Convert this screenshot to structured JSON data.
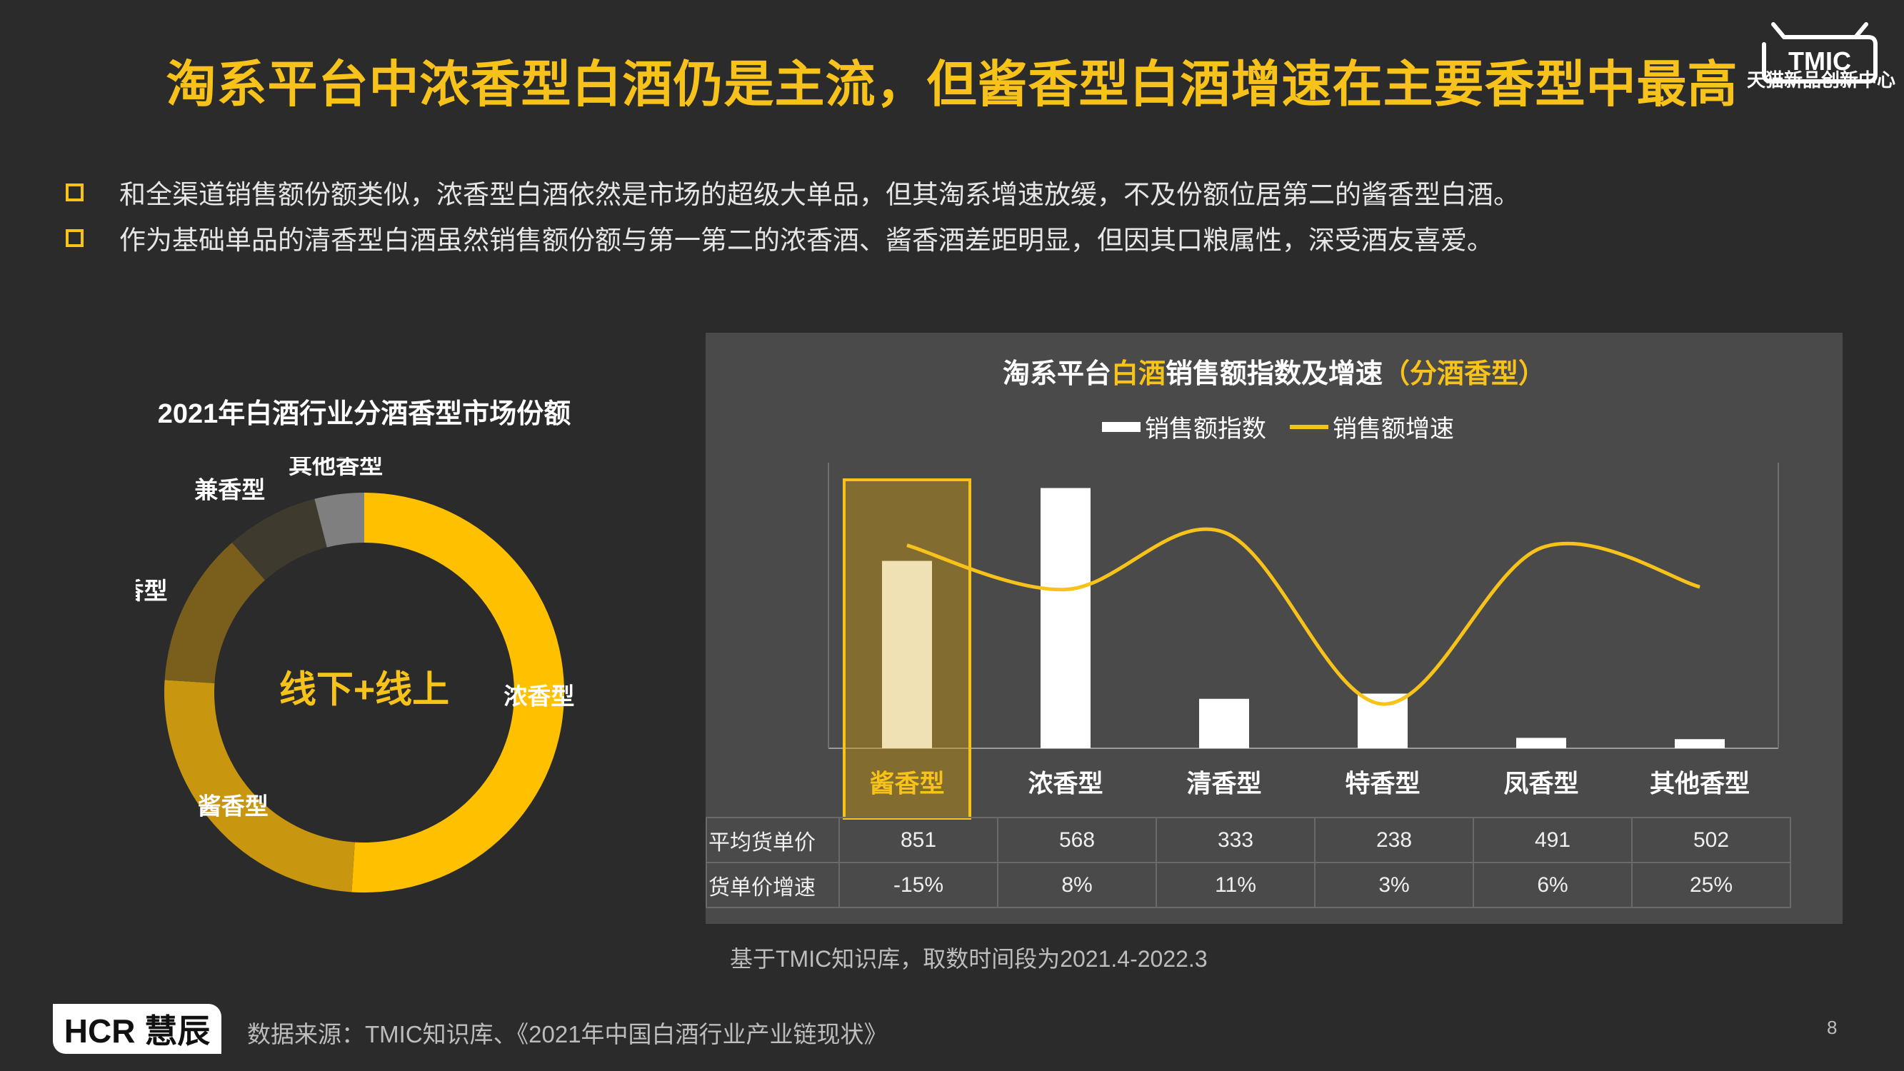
{
  "header": {
    "title": "淘系平台中浓香型白酒仍是主流，但酱香型白酒增速在主要香型中最高"
  },
  "brand": {
    "tmic_logo_text": "TMIC",
    "tmic_subtitle": "天猫新品创新中心",
    "hcr_logo": "HCR 慧辰"
  },
  "bullets": [
    "和全渠道销售额份额类似，浓香型白酒依然是市场的超级大单品，但其淘系增速放缓，不及份额位居第二的酱香型白酒。",
    "作为基础单品的清香型白酒虽然销售额份额与第一第二的浓香酒、酱香酒差距明显，但因其口粮属性，深受酒友喜爱。"
  ],
  "chart_data": [
    {
      "type": "pie",
      "variant": "donut",
      "title": "2021年白酒行业分酒香型市场份额",
      "center_label": "线下+线上",
      "slices": [
        {
          "label": "浓香型",
          "value": 51.0,
          "color": "#ffc000"
        },
        {
          "label": "酱香型",
          "value": 25.0,
          "color": "#c9960f"
        },
        {
          "label": "清香型",
          "value": 12.5,
          "color": "#7a5e1c"
        },
        {
          "label": "兼香型",
          "value": 7.5,
          "color": "#3f3a2e"
        },
        {
          "label": "其他香型",
          "value": 4.0,
          "color": "#7f7f7f"
        }
      ]
    },
    {
      "type": "bar",
      "title": {
        "prefix": "淘系平台",
        "highlight": "白酒",
        "middle": "销售额指数及增速",
        "suffix": "（分酒香型）"
      },
      "legend": {
        "bar": "销售额指数",
        "line": "销售额增速",
        "position": "top"
      },
      "categories": [
        "酱香型",
        "浓香型",
        "清香型",
        "特香型",
        "凤香型",
        "其他香型"
      ],
      "highlight_category": "酱香型",
      "series": [
        {
          "name": "销售额指数",
          "type": "bar",
          "values": [
            72,
            100,
            19,
            21,
            4,
            3.5
          ]
        },
        {
          "name": "销售额增速",
          "type": "line",
          "values": [
            78,
            61,
            83,
            17,
            77,
            62
          ]
        }
      ],
      "ylim": [
        0,
        107
      ],
      "table": {
        "rows": [
          {
            "label": "平均货单价",
            "values": [
              "851",
              "568",
              "333",
              "238",
              "491",
              "502"
            ]
          },
          {
            "label": "货单价增速",
            "values": [
              "-15%",
              "8%",
              "11%",
              "3%",
              "6%",
              "25%"
            ]
          }
        ]
      },
      "note": "基于TMIC知识库，取数时间段为2021.4-2022.3"
    }
  ],
  "footer": {
    "source": "数据来源：TMIC知识库、《2021年中国白酒行业产业链现状》",
    "page": "8"
  },
  "colors": {
    "accent": "#f7c21a",
    "background": "#2b2b2b",
    "panel": "#4a4a4a"
  }
}
